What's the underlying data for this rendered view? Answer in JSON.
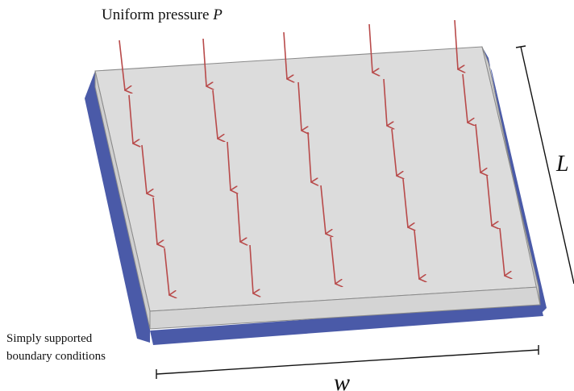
{
  "title": {
    "text": "Uniform pressure ",
    "symbol": "P"
  },
  "dimension_length": "L",
  "dimension_width": "w",
  "boundary_label": {
    "line1": "Simply supported",
    "line2": "boundary conditions"
  },
  "colors": {
    "plate_top": "#dcdcdc",
    "plate_side": "#d2d2d2",
    "support": "#4a5aa8",
    "arrow": "#b84a4a",
    "line": "#111111"
  }
}
